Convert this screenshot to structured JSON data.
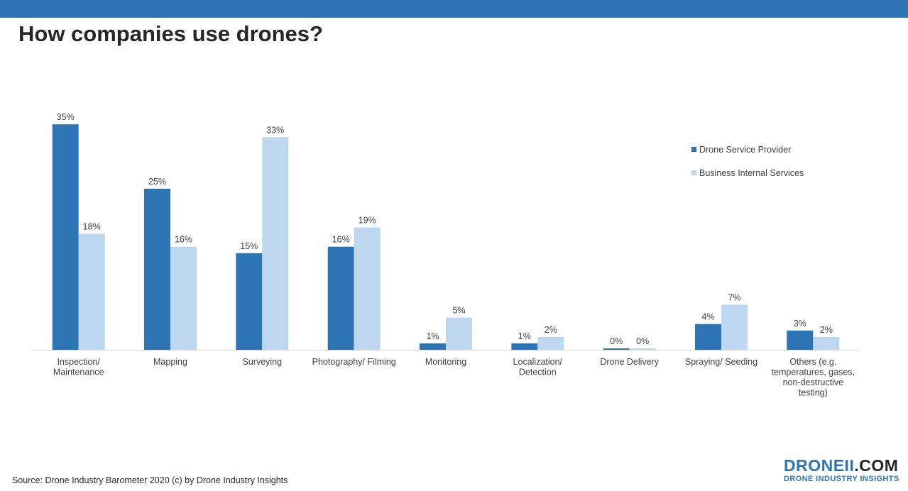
{
  "page": {
    "title": "How companies use drones?",
    "source": "Source: Drone Industry Barometer 2020 (c) by Drone Industry Insights",
    "logo": {
      "main": "DRONEII",
      "dot_com": ".COM",
      "sub": "DRONE INDUSTRY INSIGHTS"
    }
  },
  "colors": {
    "bar_dark": "#2e75b6",
    "bar_light": "#bdd7ee",
    "header_bar": "#2e75b6",
    "axis_line": "#d9d9d9"
  },
  "chart_data": {
    "type": "bar",
    "title": "How companies use drones?",
    "xlabel": "",
    "ylabel": "",
    "ylim": [
      0,
      37
    ],
    "grid": false,
    "legend_position": "top-right",
    "categories": [
      [
        "Inspection/",
        "Maintenance"
      ],
      [
        "Mapping"
      ],
      [
        "Surveying"
      ],
      [
        "Photography/ Filming"
      ],
      [
        "Monitoring"
      ],
      [
        "Localization/",
        "Detection"
      ],
      [
        "Drone Delivery"
      ],
      [
        "Spraying/ Seeding"
      ],
      [
        "Others (e.g.",
        "temperatures, gases,",
        "non-destructive",
        "testing)"
      ]
    ],
    "series": [
      {
        "name": "Drone Service Provider",
        "color": "#2e75b6",
        "values": [
          35,
          25,
          15,
          16,
          1,
          1,
          0,
          4,
          3
        ],
        "labels": [
          "35%",
          "25%",
          "15%",
          "16%",
          "1%",
          "1%",
          "0%",
          "4%",
          "3%"
        ]
      },
      {
        "name": "Business Internal Services",
        "color": "#bdd7ee",
        "values": [
          18,
          16,
          33,
          19,
          5,
          2,
          0,
          7,
          2
        ],
        "labels": [
          "18%",
          "16%",
          "33%",
          "19%",
          "5%",
          "2%",
          "0%",
          "7%",
          "2%"
        ]
      }
    ]
  }
}
